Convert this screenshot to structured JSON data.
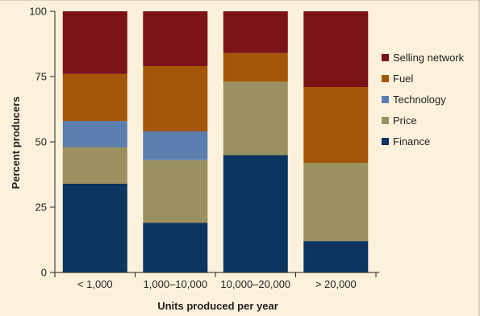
{
  "chart_data": {
    "type": "bar",
    "stacked": true,
    "categories": [
      "< 1,000",
      "1,000–10,000",
      "10,000–20,000",
      "> 20,000"
    ],
    "series": [
      {
        "name": "Finance",
        "color": "#0d3560",
        "values": [
          34,
          19,
          45,
          12
        ]
      },
      {
        "name": "Price",
        "color": "#9a9060",
        "values": [
          14,
          24,
          28,
          30
        ]
      },
      {
        "name": "Technology",
        "color": "#5b7fae",
        "values": [
          10,
          11,
          0,
          0
        ]
      },
      {
        "name": "Fuel",
        "color": "#a45607",
        "values": [
          18,
          25,
          11,
          29
        ]
      },
      {
        "name": "Selling network",
        "color": "#7c1317",
        "values": [
          24,
          21,
          16,
          29
        ]
      }
    ],
    "legend_order": [
      "Selling network",
      "Fuel",
      "Technology",
      "Price",
      "Finance"
    ],
    "xlabel": "Units produced per year",
    "ylabel": "Percent producers",
    "ylim": [
      0,
      100
    ],
    "yticks": [
      0,
      25,
      50,
      75,
      100
    ],
    "grid": false,
    "legend_position": "right"
  }
}
